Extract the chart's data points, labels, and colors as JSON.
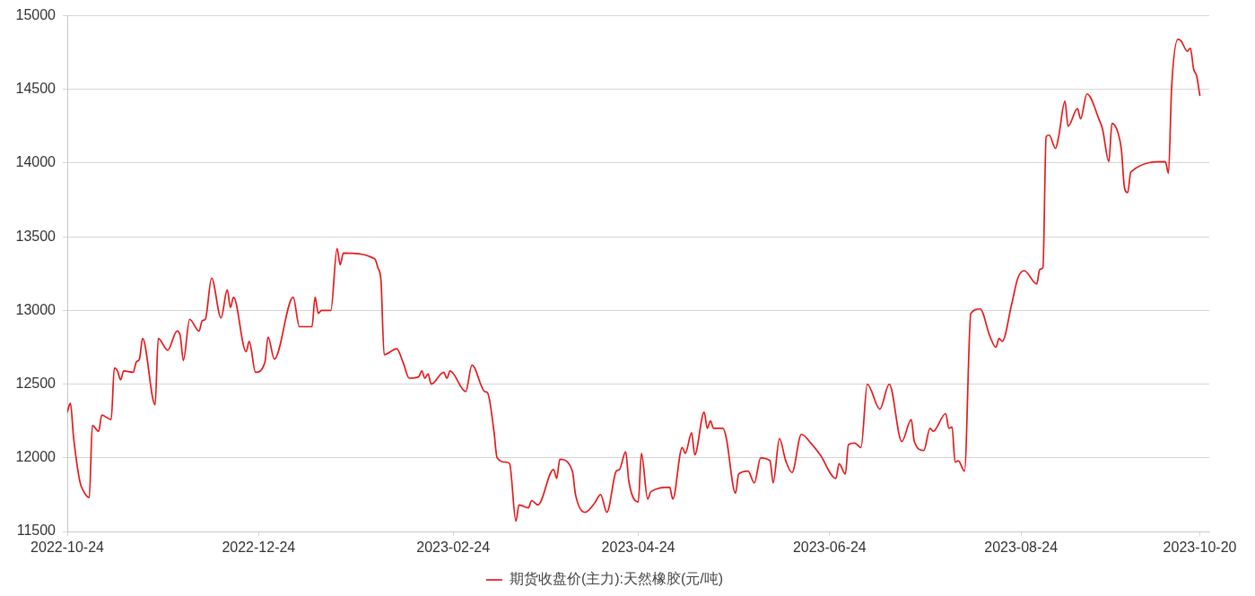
{
  "chart_data": {
    "type": "line",
    "x": [
      "2022-10-24",
      "2022-10-25",
      "2022-10-26",
      "2022-10-28",
      "2022-10-29",
      "2022-10-31",
      "2022-11-01",
      "2022-11-03",
      "2022-11-04",
      "2022-11-07",
      "2022-11-08",
      "2022-11-09",
      "2022-11-10",
      "2022-11-11",
      "2022-11-14",
      "2022-11-15",
      "2022-11-16",
      "2022-11-17",
      "2022-11-21",
      "2022-11-22",
      "2022-11-25",
      "2022-11-28",
      "2022-11-29",
      "2022-11-30",
      "2022-12-02",
      "2022-12-05",
      "2022-12-06",
      "2022-12-07",
      "2022-12-09",
      "2022-12-12",
      "2022-12-14",
      "2022-12-15",
      "2022-12-16",
      "2022-12-20",
      "2022-12-21",
      "2022-12-23",
      "2022-12-26",
      "2022-12-27",
      "2022-12-29",
      "2023-01-04",
      "2023-01-06",
      "2023-01-10",
      "2023-01-11",
      "2023-01-12",
      "2023-01-13",
      "2023-01-16",
      "2023-01-18",
      "2023-01-19",
      "2023-01-20",
      "2023-01-30",
      "2023-01-31",
      "2023-02-01",
      "2023-02-02",
      "2023-02-06",
      "2023-02-08",
      "2023-02-10",
      "2023-02-13",
      "2023-02-14",
      "2023-02-15",
      "2023-02-16",
      "2023-02-17",
      "2023-02-21",
      "2023-02-22",
      "2023-02-23",
      "2023-02-28",
      "2023-03-02",
      "2023-03-06",
      "2023-03-07",
      "2023-03-09",
      "2023-03-10",
      "2023-03-13",
      "2023-03-14",
      "2023-03-16",
      "2023-03-17",
      "2023-03-20",
      "2023-03-21",
      "2023-03-23",
      "2023-03-28",
      "2023-03-29",
      "2023-03-30",
      "2023-04-03",
      "2023-04-04",
      "2023-04-07",
      "2023-04-10",
      "2023-04-12",
      "2023-04-14",
      "2023-04-17",
      "2023-04-18",
      "2023-04-20",
      "2023-04-21",
      "2023-04-24",
      "2023-04-25",
      "2023-04-27",
      "2023-04-28",
      "2023-05-04",
      "2023-05-05",
      "2023-05-08",
      "2023-05-09",
      "2023-05-11",
      "2023-05-12",
      "2023-05-15",
      "2023-05-16",
      "2023-05-17",
      "2023-05-18",
      "2023-05-21",
      "2023-05-22",
      "2023-05-25",
      "2023-05-26",
      "2023-05-29",
      "2023-05-31",
      "2023-06-02",
      "2023-06-05",
      "2023-06-06",
      "2023-06-08",
      "2023-06-10",
      "2023-06-12",
      "2023-06-15",
      "2023-06-18",
      "2023-06-21",
      "2023-06-26",
      "2023-06-27",
      "2023-06-29",
      "2023-06-30",
      "2023-07-02",
      "2023-07-04",
      "2023-07-06",
      "2023-07-10",
      "2023-07-13",
      "2023-07-17",
      "2023-07-20",
      "2023-07-21",
      "2023-07-24",
      "2023-07-26",
      "2023-07-27",
      "2023-07-31",
      "2023-08-01",
      "2023-08-02",
      "2023-08-03",
      "2023-08-04",
      "2023-08-06",
      "2023-08-08",
      "2023-08-11",
      "2023-08-14",
      "2023-08-16",
      "2023-08-17",
      "2023-08-18",
      "2023-08-21",
      "2023-08-23",
      "2023-08-25",
      "2023-08-29",
      "2023-08-30",
      "2023-08-31",
      "2023-09-01",
      "2023-09-02",
      "2023-09-04",
      "2023-09-05",
      "2023-09-07",
      "2023-09-08",
      "2023-09-11",
      "2023-09-12",
      "2023-09-14",
      "2023-09-18",
      "2023-09-19",
      "2023-09-21",
      "2023-09-22",
      "2023-09-24",
      "2023-09-25",
      "2023-09-26",
      "2023-09-27",
      "2023-09-28",
      "2023-10-09",
      "2023-10-10",
      "2023-10-11",
      "2023-10-13",
      "2023-10-14",
      "2023-10-16",
      "2023-10-17",
      "2023-10-18",
      "2023-10-19",
      "2023-10-20"
    ],
    "series": [
      {
        "name": "期货收盘价(主力):天然橡胶(元/吨)",
        "color": "#e41a1c",
        "values": [
          12310,
          12370,
          12140,
          11840,
          11780,
          11730,
          12220,
          12180,
          12290,
          12260,
          12610,
          12590,
          12530,
          12590,
          12580,
          12650,
          12670,
          12810,
          12360,
          12810,
          12730,
          12860,
          12830,
          12660,
          12940,
          12860,
          12930,
          12940,
          13220,
          12950,
          13140,
          13020,
          13090,
          12720,
          12790,
          12580,
          12650,
          12820,
          12670,
          13090,
          12890,
          12890,
          13090,
          12980,
          13000,
          13000,
          13420,
          13310,
          13390,
          13350,
          13290,
          13200,
          12700,
          12740,
          12650,
          12540,
          12550,
          12590,
          12540,
          12570,
          12500,
          12580,
          12540,
          12590,
          12450,
          12630,
          12450,
          12440,
          12180,
          12000,
          11970,
          11960,
          11570,
          11680,
          11660,
          11710,
          11680,
          11920,
          11860,
          11990,
          11910,
          11750,
          11630,
          11690,
          11750,
          11630,
          11910,
          11920,
          12040,
          11840,
          11700,
          12030,
          11720,
          11770,
          11800,
          11720,
          12070,
          12030,
          12170,
          12020,
          12310,
          12200,
          12250,
          12200,
          12200,
          12140,
          11760,
          11890,
          11910,
          11830,
          12000,
          11980,
          11830,
          12130,
          11980,
          11900,
          12160,
          12100,
          12020,
          11860,
          11960,
          11890,
          12090,
          12100,
          12070,
          12500,
          12330,
          12500,
          12110,
          12260,
          12110,
          12050,
          12200,
          12180,
          12300,
          12200,
          12210,
          11970,
          11980,
          11910,
          12980,
          13010,
          12830,
          12750,
          12810,
          12790,
          13040,
          13220,
          13270,
          13180,
          13280,
          13290,
          14180,
          14190,
          14100,
          14180,
          14420,
          14250,
          14370,
          14300,
          14470,
          14290,
          14230,
          14010,
          14270,
          14200,
          14090,
          13830,
          13800,
          13940,
          14010,
          13930,
          14510,
          14840,
          14830,
          14760,
          14780,
          14640,
          14590,
          14460
        ]
      }
    ],
    "xlim": [
      "2022-10-24",
      "2023-10-23"
    ],
    "xticks": [
      "2022-10-24",
      "2022-12-24",
      "2023-02-24",
      "2023-04-24",
      "2023-06-24",
      "2023-08-24",
      "2023-10-20"
    ],
    "ylim": [
      11500,
      15000
    ],
    "yticks": [
      11500,
      12000,
      12500,
      13000,
      13500,
      14000,
      14500,
      15000
    ],
    "grid": "y",
    "legend": "bottom",
    "marker": "none",
    "line_style": "solid"
  }
}
